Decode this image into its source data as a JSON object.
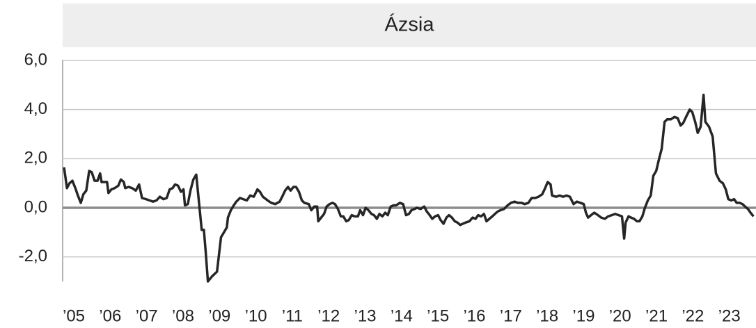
{
  "chart_data": {
    "type": "line",
    "title": "Ázsia",
    "color": "#262626",
    "grid": true,
    "xlim": [
      2005,
      2024
    ],
    "ylim": [
      -3,
      6
    ],
    "yticks": [
      {
        "value": -2,
        "label": "-2,0"
      },
      {
        "value": 0,
        "label": "0,0"
      },
      {
        "value": 2,
        "label": "2,0"
      },
      {
        "value": 4,
        "label": "4,0"
      },
      {
        "value": 6,
        "label": "6,0"
      }
    ],
    "xticks": [
      {
        "value": 2005,
        "label": "’05"
      },
      {
        "value": 2006,
        "label": "’06"
      },
      {
        "value": 2007,
        "label": "’07"
      },
      {
        "value": 2008,
        "label": "’08"
      },
      {
        "value": 2009,
        "label": "’09"
      },
      {
        "value": 2010,
        "label": "’10"
      },
      {
        "value": 2011,
        "label": "’11"
      },
      {
        "value": 2012,
        "label": "’12"
      },
      {
        "value": 2013,
        "label": "’13"
      },
      {
        "value": 2014,
        "label": "’14"
      },
      {
        "value": 2015,
        "label": "’15"
      },
      {
        "value": 2016,
        "label": "’16"
      },
      {
        "value": 2017,
        "label": "’17"
      },
      {
        "value": 2018,
        "label": "’18"
      },
      {
        "value": 2019,
        "label": "’19"
      },
      {
        "value": 2020,
        "label": "’20"
      },
      {
        "value": 2021,
        "label": "’21"
      },
      {
        "value": 2022,
        "label": "’22"
      },
      {
        "value": 2023,
        "label": "’23"
      }
    ],
    "x": [
      2005.0,
      2005.08,
      2005.15,
      2005.23,
      2005.31,
      2005.38,
      2005.46,
      2005.53,
      2005.61,
      2005.69,
      2005.76,
      2005.84,
      2005.92,
      2005.99,
      2006.03,
      2006.11,
      2006.18,
      2006.22,
      2006.3,
      2006.39,
      2006.49,
      2006.56,
      2006.64,
      2006.68,
      2006.77,
      2006.87,
      2006.97,
      2007.06,
      2007.14,
      2007.25,
      2007.35,
      2007.44,
      2007.54,
      2007.63,
      2007.73,
      2007.82,
      2007.9,
      2007.98,
      2008.05,
      2008.13,
      2008.21,
      2008.28,
      2008.32,
      2008.4,
      2008.47,
      2008.55,
      2008.63,
      2008.7,
      2008.78,
      2008.84,
      2008.89,
      2008.95,
      2009.06,
      2009.2,
      2009.31,
      2009.39,
      2009.47,
      2009.5,
      2009.58,
      2009.66,
      2009.73,
      2009.83,
      2009.92,
      2010.02,
      2010.11,
      2010.21,
      2010.31,
      2010.38,
      2010.46,
      2010.59,
      2010.69,
      2010.8,
      2010.92,
      2010.99,
      2011.07,
      2011.15,
      2011.22,
      2011.3,
      2011.37,
      2011.45,
      2011.53,
      2011.6,
      2011.72,
      2011.79,
      2011.87,
      2011.95,
      2011.98,
      2012.06,
      2012.14,
      2012.21,
      2012.29,
      2012.37,
      2012.44,
      2012.52,
      2012.6,
      2012.67,
      2012.75,
      2012.82,
      2012.9,
      2012.98,
      2013.07,
      2013.13,
      2013.21,
      2013.28,
      2013.36,
      2013.44,
      2013.51,
      2013.59,
      2013.66,
      2013.74,
      2013.82,
      2013.89,
      2013.97,
      2014.05,
      2014.12,
      2014.22,
      2014.31,
      2014.39,
      2014.47,
      2014.54,
      2014.62,
      2014.69,
      2014.79,
      2014.89,
      2014.96,
      2015.04,
      2015.11,
      2015.19,
      2015.27,
      2015.34,
      2015.42,
      2015.5,
      2015.57,
      2015.65,
      2015.73,
      2015.8,
      2015.88,
      2015.95,
      2016.03,
      2016.13,
      2016.22,
      2016.3,
      2016.37,
      2016.45,
      2016.53,
      2016.6,
      2016.68,
      2016.76,
      2016.83,
      2016.91,
      2016.98,
      2017.08,
      2017.18,
      2017.27,
      2017.37,
      2017.46,
      2017.56,
      2017.65,
      2017.75,
      2017.84,
      2017.94,
      2018.03,
      2018.13,
      2018.21,
      2018.28,
      2018.36,
      2018.4,
      2018.51,
      2018.61,
      2018.7,
      2018.8,
      2018.89,
      2018.99,
      2019.08,
      2019.18,
      2019.27,
      2019.33,
      2019.39,
      2019.47,
      2019.56,
      2019.66,
      2019.75,
      2019.85,
      2019.94,
      2020.04,
      2020.13,
      2020.23,
      2020.32,
      2020.38,
      2020.42,
      2020.5,
      2020.57,
      2020.65,
      2020.73,
      2020.8,
      2020.88,
      2020.95,
      2021.03,
      2021.11,
      2021.18,
      2021.26,
      2021.34,
      2021.41,
      2021.49,
      2021.56,
      2021.66,
      2021.76,
      2021.85,
      2021.93,
      2022.0,
      2022.08,
      2022.18,
      2022.25,
      2022.33,
      2022.4,
      2022.48,
      2022.56,
      2022.61,
      2022.71,
      2022.81,
      2022.9,
      2023.0,
      2023.09,
      2023.17,
      2023.24,
      2023.32,
      2023.4,
      2023.47,
      2023.55,
      2023.63,
      2023.7,
      2023.78,
      2023.85,
      2023.93
    ],
    "values": [
      1.65,
      0.8,
      1.0,
      1.1,
      0.8,
      0.5,
      0.2,
      0.55,
      0.7,
      1.5,
      1.45,
      1.1,
      1.1,
      1.4,
      1.05,
      1.05,
      1.05,
      0.6,
      0.75,
      0.8,
      0.9,
      1.15,
      1.05,
      0.8,
      0.85,
      0.8,
      0.7,
      0.95,
      0.4,
      0.35,
      0.3,
      0.25,
      0.3,
      0.45,
      0.35,
      0.4,
      0.75,
      0.8,
      0.95,
      0.9,
      0.65,
      0.75,
      0.1,
      0.15,
      0.7,
      1.15,
      1.35,
      0.3,
      -0.9,
      -0.9,
      -1.8,
      -3.0,
      -2.8,
      -2.6,
      -1.2,
      -1.0,
      -0.8,
      -0.4,
      -0.1,
      0.1,
      0.25,
      0.4,
      0.35,
      0.3,
      0.5,
      0.45,
      0.75,
      0.65,
      0.45,
      0.3,
      0.2,
      0.15,
      0.25,
      0.45,
      0.7,
      0.85,
      0.7,
      0.85,
      0.85,
      0.65,
      0.3,
      0.2,
      0.15,
      -0.1,
      0.05,
      0.05,
      -0.55,
      -0.4,
      -0.25,
      0.05,
      0.15,
      0.2,
      0.15,
      -0.05,
      -0.35,
      -0.35,
      -0.55,
      -0.5,
      -0.3,
      -0.35,
      -0.35,
      -0.1,
      -0.3,
      0.0,
      -0.1,
      -0.25,
      -0.3,
      -0.45,
      -0.25,
      -0.35,
      -0.2,
      -0.3,
      0.05,
      0.1,
      0.1,
      0.2,
      0.15,
      -0.3,
      -0.25,
      -0.1,
      -0.05,
      0.0,
      -0.05,
      0.05,
      -0.15,
      -0.3,
      -0.45,
      -0.35,
      -0.3,
      -0.5,
      -0.65,
      -0.4,
      -0.3,
      -0.4,
      -0.55,
      -0.6,
      -0.7,
      -0.65,
      -0.6,
      -0.55,
      -0.4,
      -0.45,
      -0.3,
      -0.35,
      -0.25,
      -0.55,
      -0.45,
      -0.35,
      -0.25,
      -0.15,
      -0.1,
      -0.05,
      0.1,
      0.2,
      0.25,
      0.2,
      0.2,
      0.15,
      0.2,
      0.4,
      0.4,
      0.45,
      0.55,
      0.8,
      1.05,
      0.95,
      0.5,
      0.45,
      0.5,
      0.45,
      0.5,
      0.45,
      0.15,
      0.25,
      0.2,
      0.15,
      -0.2,
      -0.4,
      -0.3,
      -0.2,
      -0.3,
      -0.4,
      -0.45,
      -0.35,
      -0.3,
      -0.25,
      -0.3,
      -0.35,
      -1.25,
      -0.6,
      -0.35,
      -0.4,
      -0.45,
      -0.55,
      -0.55,
      -0.35,
      0.0,
      0.3,
      0.5,
      1.3,
      1.5,
      2.0,
      2.4,
      3.5,
      3.6,
      3.6,
      3.7,
      3.65,
      3.35,
      3.45,
      3.7,
      4.0,
      3.9,
      3.5,
      3.05,
      3.3,
      4.6,
      3.5,
      3.3,
      2.9,
      1.4,
      1.1,
      1.0,
      0.75,
      0.35,
      0.3,
      0.35,
      0.2,
      0.2,
      0.15,
      0.05,
      -0.05,
      -0.2,
      -0.35
    ]
  }
}
